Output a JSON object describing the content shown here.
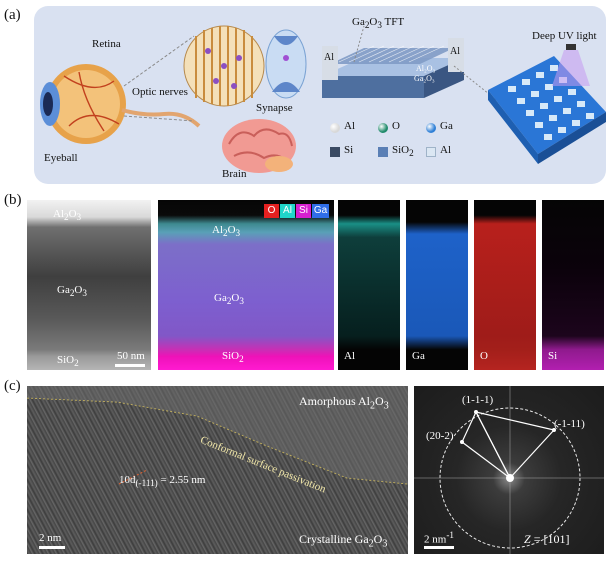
{
  "panel_a": {
    "letter": "(a)",
    "labels": {
      "retina": "Retina",
      "synapse": "Synapse",
      "eyeball": "Eyeball",
      "optic_nerves": "Optic nerves",
      "brain": "Brain",
      "tft": "Ga2O3 TFT",
      "tft_main": "Ga",
      "tft_sub2": "2",
      "tft_o": "O",
      "tft_sub3": "3",
      "tft_rest": " TFT",
      "al_left": "Al",
      "al_right": "Al",
      "stack_al2o3": "Al₂O₃",
      "stack_ga2o3": "Ga₂O₃",
      "deep_uv": "Deep UV light"
    },
    "legend": [
      {
        "symbol": "sphere",
        "color": "#d8d8d8",
        "label": "Al"
      },
      {
        "symbol": "sphere",
        "color": "#1f8a6a",
        "label": "O"
      },
      {
        "symbol": "sphere",
        "color": "#2e7fd6",
        "label": "Ga"
      },
      {
        "symbol": "square",
        "color": "#3a4a63",
        "label": "Si"
      },
      {
        "symbol": "square",
        "color": "#5a7fb5",
        "label": "SiO"
      },
      {
        "symbol": "square",
        "color": "#dbe7f3",
        "label": "Al"
      }
    ],
    "legend_sio2_sub": "2"
  },
  "panel_b": {
    "letter": "(b)",
    "tem": {
      "al2o3": "Al",
      "al2o3_sub1": "2",
      "al2o3_o": "O",
      "al2o3_sub2": "3",
      "ga2o3": "Ga",
      "ga2o3_sub1": "2",
      "ga2o3_o": "O",
      "ga2o3_sub2": "3",
      "sio2": "SiO",
      "sio2_sub": "2",
      "scale": "50 nm"
    },
    "eds_legend": [
      {
        "label": "O",
        "color": "#e52020"
      },
      {
        "label": "Al",
        "color": "#1fd6c9"
      },
      {
        "label": "Si",
        "color": "#d51ed0"
      },
      {
        "label": "Ga",
        "color": "#2f6ee8"
      }
    ],
    "eds_layers": {
      "al2o3": "Al",
      "al2o3_sub1": "2",
      "al2o3_o": "O",
      "al2o3_sub2": "3",
      "ga2o3": "Ga",
      "ga2o3_sub1": "2",
      "ga2o3_o": "O",
      "ga2o3_sub2": "3",
      "sio2": "SiO",
      "sio2_sub": "2"
    },
    "maps": [
      {
        "label": "Al",
        "color": "#1a8f86"
      },
      {
        "label": "Ga",
        "color": "#1e62c9"
      },
      {
        "label": "O",
        "color": "#b8201c"
      },
      {
        "label": "Si",
        "color": "#b21fb0"
      }
    ]
  },
  "panel_c": {
    "letter": "(c)",
    "hrtem": {
      "amorphous": "Amorphous Al",
      "amorphous_sub1": "2",
      "amorphous_o": "O",
      "amorphous_sub2": "3",
      "passivation": "Conformal surface passivation",
      "d_pre": "10d",
      "d_sub": "(-111)",
      "d_post": " = 2.55 nm",
      "crystalline": "Crystalline Ga",
      "crystalline_sub1": "2",
      "crystalline_o": "O",
      "crystalline_sub2": "3",
      "scale": "2 nm"
    },
    "fft": {
      "spot1": "(1-1-1)",
      "spot2": "(-1-11)",
      "spot3": "(20-2)",
      "scale_pre": "2 nm",
      "scale_sup": "-1",
      "zone_pre": "Z",
      "zone_post": " =  [101]"
    }
  }
}
